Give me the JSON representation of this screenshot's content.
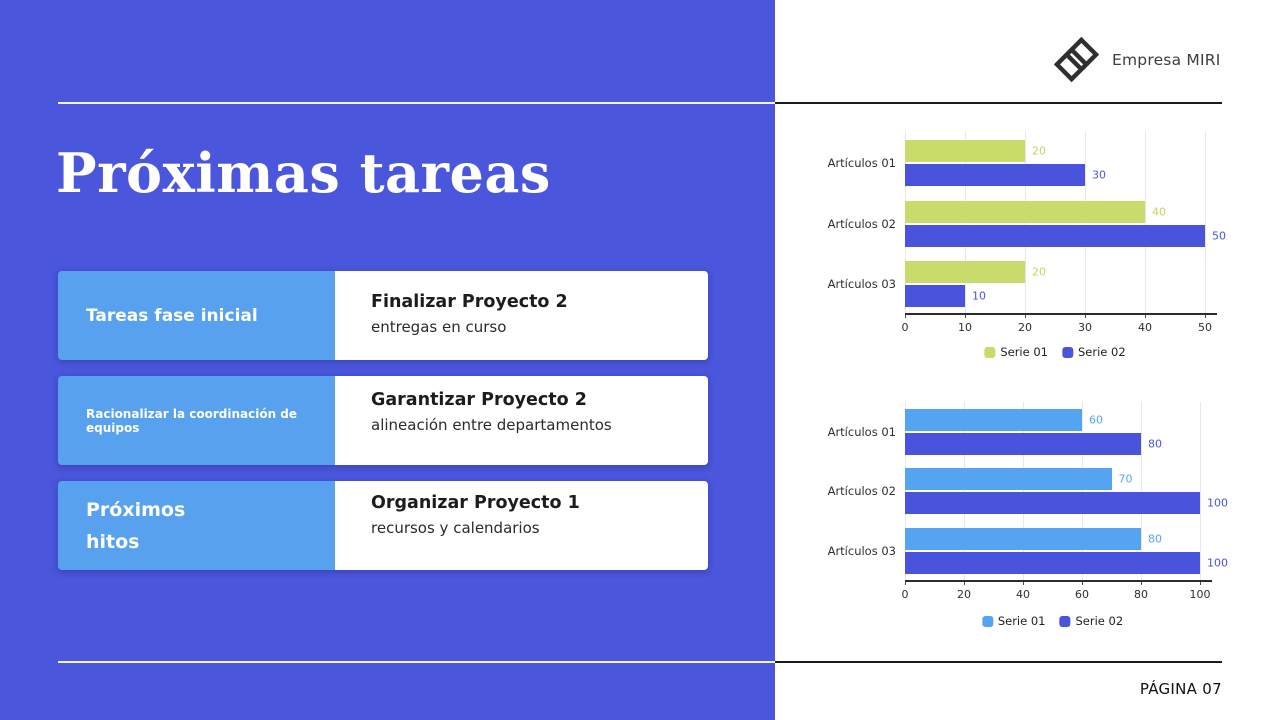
{
  "slide": {
    "title": "Próximas tareas",
    "page_label": "PÁGINA 07",
    "brand": {
      "name": "Empresa MIRI"
    },
    "colors": {
      "panel_blue": "#4a56db",
      "label_blue": "#57a1ef",
      "green": "#c9db6a",
      "light_blue": "#55a4f1",
      "dark_blue_bar": "#4a53dc"
    },
    "tasks": [
      {
        "label": "Tareas fase inicial",
        "title": "Finalizar Proyecto 2",
        "subtitle": "entregas en curso"
      },
      {
        "label": "Racionalizar la coordinación de equipos",
        "title": "Garantizar Proyecto 2",
        "subtitle": "alineación entre departamentos"
      },
      {
        "label": "Próximos hitos",
        "title": "Organizar Proyecto 1",
        "subtitle": "recursos y calendarios"
      }
    ]
  },
  "chart_data": [
    {
      "type": "bar",
      "orientation": "horizontal",
      "title": "",
      "categories": [
        "Artículos 01",
        "Artículos 02",
        "Artículos 03"
      ],
      "series": [
        {
          "name": "Serie 01",
          "color": "#c9db6a",
          "label_color": "#c3d55f",
          "values": [
            20,
            40,
            20
          ]
        },
        {
          "name": "Serie 02",
          "color": "#4a53dc",
          "label_color": "#4a55dd",
          "values": [
            30,
            50,
            10
          ]
        }
      ],
      "xlim": [
        0,
        50
      ],
      "ticks": [
        0,
        10,
        20,
        30,
        40,
        50
      ],
      "grid": true,
      "data_labels": true,
      "legend_position": "bottom"
    },
    {
      "type": "bar",
      "orientation": "horizontal",
      "title": "",
      "categories": [
        "Artículos 01",
        "Artículos 02",
        "Artículos 03"
      ],
      "series": [
        {
          "name": "Serie 01",
          "color": "#55a4f1",
          "label_color": "#57a4f2",
          "values": [
            60,
            70,
            80
          ]
        },
        {
          "name": "Serie 02",
          "color": "#4a53dc",
          "label_color": "#4a55dd",
          "values": [
            80,
            100,
            100
          ]
        }
      ],
      "xlim": [
        0,
        100
      ],
      "ticks": [
        0,
        20,
        40,
        60,
        80,
        100
      ],
      "grid": true,
      "data_labels": true,
      "legend_position": "bottom"
    }
  ]
}
